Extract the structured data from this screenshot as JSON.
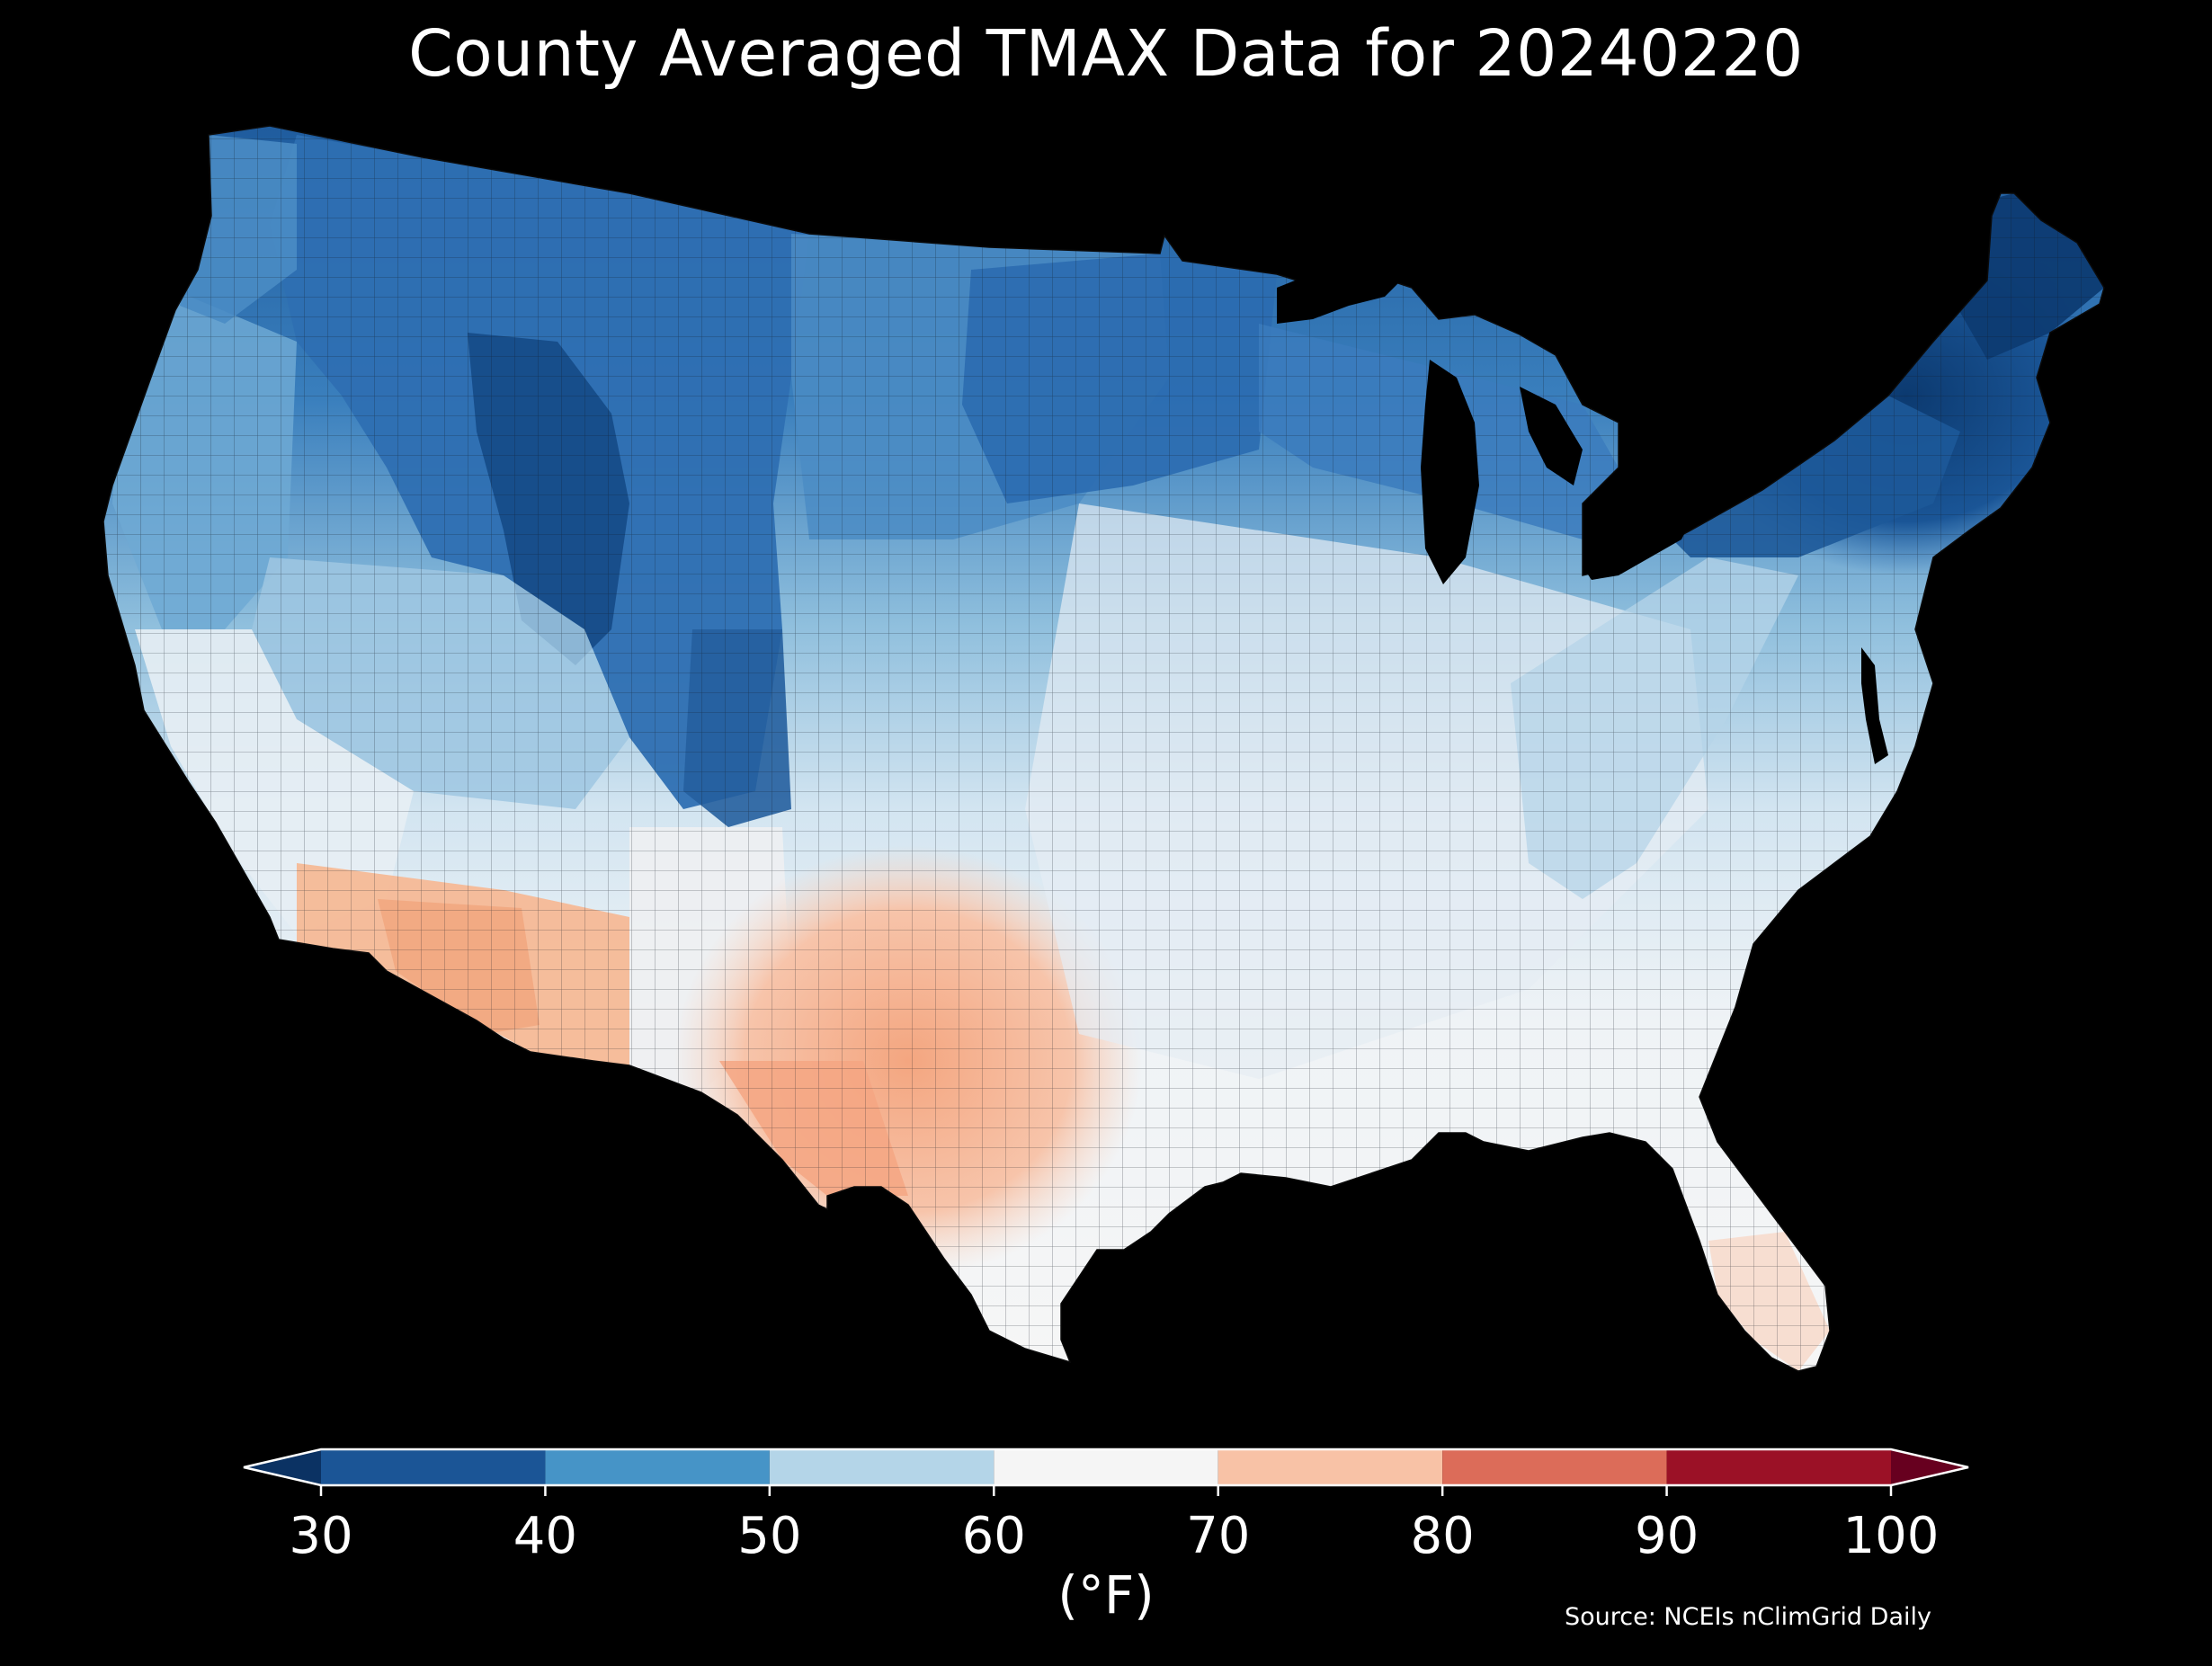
{
  "title": "County Averaged TMAX Data for 20240220",
  "colorbar": {
    "label": "(°F)",
    "ticks": [
      "30",
      "40",
      "50",
      "60",
      "70",
      "80",
      "90",
      "100"
    ],
    "bins": [
      {
        "from": 30,
        "to": 40,
        "color": "#1b5596"
      },
      {
        "from": 40,
        "to": 50,
        "color": "#4694c7"
      },
      {
        "from": 50,
        "to": 60,
        "color": "#b4d5e8"
      },
      {
        "from": 60,
        "to": 70,
        "color": "#f5f5f5"
      },
      {
        "from": 70,
        "to": 80,
        "color": "#f8c2a6"
      },
      {
        "from": 80,
        "to": 90,
        "color": "#dc6c59"
      },
      {
        "from": 90,
        "to": 100,
        "color": "#9b1126"
      }
    ],
    "under_color": "#0b3263",
    "over_color": "#67001f"
  },
  "source": "Source: NCEIs nClimGrid Daily",
  "colors": {
    "background": "#000000",
    "text": "#ffffff"
  }
}
